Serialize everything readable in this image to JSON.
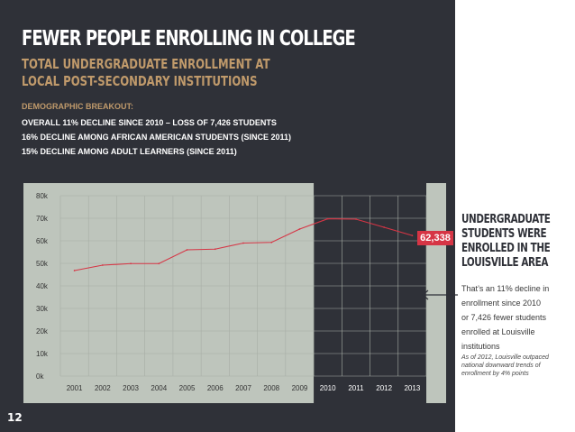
{
  "header": {
    "title": "FEWER PEOPLE ENROLLING IN COLLEGE",
    "subtitle_line1": "TOTAL UNDERGRADUATE ENROLLMENT AT",
    "subtitle_line2": "LOCAL POST-SECONDARY INSTITUTIONS"
  },
  "breakout": {
    "heading": "DEMOGRAPHIC BREAKOUT:",
    "items": [
      "OVERALL 11% DECLINE SINCE 2010 – LOSS OF 7,426 STUDENTS",
      "16% DECLINE AMONG AFRICAN AMERICAN STUDENTS (SINCE 2011)",
      "15% DECLINE AMONG ADULT LEARNERS (SINCE 2011)"
    ]
  },
  "callout": {
    "value": "62,338",
    "heading_lines": [
      "UNDERGRADUATE",
      "STUDENTS WERE",
      "ENROLLED IN THE",
      "LOUISVILLE AREA"
    ],
    "body_lines": [
      "That’s an 11% decline in",
      "enrollment since 2010",
      "or 7,426 fewer students",
      "enrolled at Louisville",
      "institutions"
    ],
    "note_lines": [
      "As of 2012, Louisville outpaced",
      "national downward trends of",
      "enrollment by 4% points"
    ]
  },
  "page_number": "12",
  "colors": {
    "panel": "#2f3138",
    "accent_tan": "#c09a6b",
    "line": "#d63545",
    "chart_bg": "#bec5bc"
  },
  "chart_data": {
    "type": "line",
    "title": "",
    "xlabel": "",
    "ylabel": "",
    "x": [
      "2001",
      "2002",
      "2003",
      "2004",
      "2005",
      "2006",
      "2007",
      "2008",
      "2009",
      "2010",
      "2011",
      "2012",
      "2013"
    ],
    "series": [
      {
        "values": [
          46800,
          49200,
          49900,
          49900,
          56000,
          56300,
          59000,
          59300,
          65200,
          69764,
          69600,
          66000,
          62338
        ]
      }
    ],
    "y_ticks": [
      "0k",
      "10k",
      "20k",
      "30k",
      "40k",
      "50k",
      "60k",
      "70k",
      "80k"
    ],
    "ylim": [
      0,
      80000
    ],
    "highlight_years": [
      "2010",
      "2011",
      "2012",
      "2013"
    ],
    "grid": true
  }
}
